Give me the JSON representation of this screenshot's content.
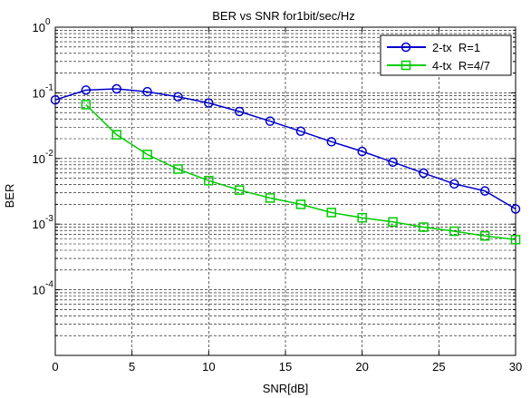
{
  "chart_data": {
    "type": "line",
    "title": "BER vs SNR for1bit/sec/Hz",
    "xlabel": "SNR[dB]",
    "ylabel": "BER",
    "xlim": [
      0,
      30
    ],
    "ylim": [
      1e-05,
      1
    ],
    "yscale": "log",
    "grid": true,
    "legend_position": "top-right",
    "x_ticks": [
      0,
      5,
      10,
      15,
      20,
      25,
      30
    ],
    "y_ticks": [
      {
        "value": 1,
        "base": "10",
        "exp": "0"
      },
      {
        "value": 0.1,
        "base": "10",
        "exp": "-1"
      },
      {
        "value": 0.01,
        "base": "10",
        "exp": "-2"
      },
      {
        "value": 0.001,
        "base": "10",
        "exp": "-3"
      },
      {
        "value": 0.0001,
        "base": "10",
        "exp": "-4"
      }
    ],
    "series": [
      {
        "name": "2-tx  R=1",
        "color": "#0000cc",
        "marker": "circle",
        "x": [
          0,
          2,
          4,
          6,
          8,
          10,
          12,
          14,
          16,
          18,
          20,
          22,
          24,
          26,
          28,
          30
        ],
        "values": [
          0.078,
          0.11,
          0.115,
          0.104,
          0.087,
          0.07,
          0.052,
          0.037,
          0.026,
          0.018,
          0.0128,
          0.0088,
          0.006,
          0.0041,
          0.0032,
          0.0017
        ]
      },
      {
        "name": "4-tx  R=4/7",
        "color": "#00cc00",
        "marker": "square",
        "x": [
          2,
          4,
          6,
          8,
          10,
          12,
          14,
          16,
          18,
          20,
          22,
          24,
          26,
          28,
          30
        ],
        "values": [
          0.066,
          0.023,
          0.0115,
          0.0069,
          0.0046,
          0.0033,
          0.0025,
          0.002,
          0.0015,
          0.00125,
          0.00108,
          0.0009,
          0.00078,
          0.00066,
          0.00058
        ]
      }
    ]
  }
}
